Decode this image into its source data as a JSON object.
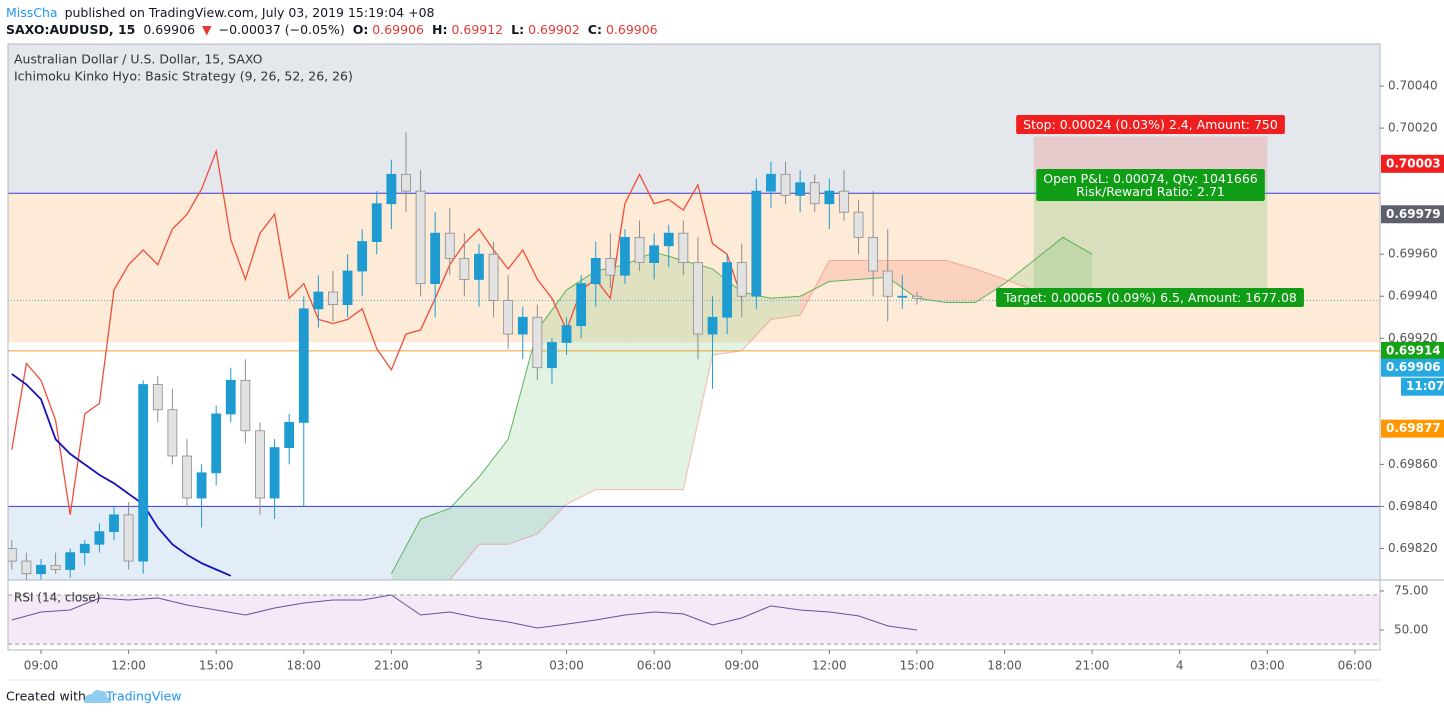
{
  "header": {
    "author": "MissCha",
    "published": "published on TradingView.com, July 03, 2019 15:19:04 +08",
    "symbol": "SAXO:AUDUSD, 15",
    "last": 0.69906,
    "arrow": "▼",
    "change": "−0.00037 (−0.05%)",
    "o_label": "O:",
    "open": 0.69906,
    "h_label": "H:",
    "high": 0.69912,
    "l_label": "L:",
    "low": 0.69902,
    "c_label": "C:",
    "close": 0.69906
  },
  "footer": {
    "created": "Created with",
    "brand": "TradingView"
  },
  "chart_data": {
    "type": "candlestick",
    "title": "Australian Dollar / U.S. Dollar, 15, SAXO",
    "subtitle": "Ichimoku Kinko Hyo: Basic Strategy (9, 26, 52, 26, 26)",
    "xlim": [
      7.87,
      54.86
    ],
    "xticks": [
      {
        "value": 9,
        "label": "09:00"
      },
      {
        "value": 12,
        "label": "12:00"
      },
      {
        "value": 15,
        "label": "15:00"
      },
      {
        "value": 18,
        "label": "18:00"
      },
      {
        "value": 21,
        "label": "21:00"
      },
      {
        "value": 24,
        "label": "3"
      },
      {
        "value": 27,
        "label": "03:00"
      },
      {
        "value": 30,
        "label": "06:00"
      },
      {
        "value": 33,
        "label": "09:00"
      },
      {
        "value": 36,
        "label": "12:00"
      },
      {
        "value": 39,
        "label": "15:00"
      },
      {
        "value": 42,
        "label": "18:00"
      },
      {
        "value": 45,
        "label": "21:00"
      },
      {
        "value": 48,
        "label": "4"
      },
      {
        "value": 51,
        "label": "03:00"
      },
      {
        "value": 54,
        "label": "06:00"
      }
    ],
    "ylim": [
      0.69805,
      0.7006
    ],
    "yticks": [
      {
        "value": 0.7004,
        "label": "0.70040"
      },
      {
        "value": 0.7002,
        "label": "0.70020"
      },
      {
        "value": 0.6996,
        "label": "0.69960"
      },
      {
        "value": 0.6994,
        "label": "0.69940"
      },
      {
        "value": 0.6992,
        "label": "0.69920"
      },
      {
        "value": 0.6986,
        "label": "0.69860"
      },
      {
        "value": 0.6984,
        "label": "0.69840"
      },
      {
        "value": 0.6982,
        "label": "0.69820"
      }
    ],
    "up_color": "#1e9bd0",
    "down_color": "#e2e2e2",
    "candles": {
      "x": [
        8,
        8.5,
        9,
        9.5,
        10,
        10.5,
        11,
        11.5,
        12,
        12.5,
        13,
        13.5,
        14,
        14.5,
        15,
        15.5,
        16,
        16.5,
        17,
        17.5,
        18,
        18.5,
        19,
        19.5,
        20,
        20.5,
        21,
        21.5,
        22,
        22.5,
        23,
        23.5,
        24,
        24.5,
        25,
        25.5,
        26,
        26.5,
        27,
        27.5,
        28,
        28.5,
        29,
        29.5,
        30,
        30.5,
        31,
        31.5,
        32,
        32.5,
        33,
        33.5,
        34,
        34.5,
        35,
        35.5,
        36,
        36.5,
        37,
        37.5,
        38,
        38.5,
        39
      ],
      "open": [
        0.6982,
        0.69814,
        0.69808,
        0.69812,
        0.6981,
        0.69818,
        0.69822,
        0.69828,
        0.69836,
        0.69814,
        0.69898,
        0.69886,
        0.69864,
        0.69844,
        0.69856,
        0.69884,
        0.699,
        0.69876,
        0.69844,
        0.69868,
        0.6988,
        0.69934,
        0.69942,
        0.69936,
        0.69952,
        0.69966,
        0.69984,
        0.69998,
        0.6999,
        0.69946,
        0.6997,
        0.69958,
        0.69948,
        0.6996,
        0.69938,
        0.69922,
        0.6993,
        0.69906,
        0.69918,
        0.69926,
        0.69946,
        0.69958,
        0.6995,
        0.69968,
        0.69956,
        0.69964,
        0.6997,
        0.69956,
        0.69922,
        0.6993,
        0.69956,
        0.6994,
        0.6999,
        0.69998,
        0.69988,
        0.69994,
        0.69984,
        0.6999,
        0.6998,
        0.69968,
        0.69952,
        0.6994,
        0.6994
      ],
      "high": [
        0.69824,
        0.69818,
        0.69815,
        0.69818,
        0.6982,
        0.69824,
        0.69832,
        0.6984,
        0.69842,
        0.699,
        0.69902,
        0.69896,
        0.69872,
        0.6986,
        0.69888,
        0.69906,
        0.6991,
        0.6988,
        0.69872,
        0.69884,
        0.6994,
        0.6995,
        0.69952,
        0.6996,
        0.69972,
        0.6999,
        0.70005,
        0.70018,
        0.7,
        0.6998,
        0.69982,
        0.6997,
        0.69965,
        0.69966,
        0.6995,
        0.69935,
        0.69936,
        0.6992,
        0.6993,
        0.6995,
        0.69966,
        0.6997,
        0.69972,
        0.69976,
        0.6997,
        0.69974,
        0.69976,
        0.69968,
        0.6994,
        0.6996,
        0.69965,
        0.69996,
        0.70004,
        0.70004,
        0.7,
        0.69998,
        0.69996,
        0.7,
        0.69986,
        0.6999,
        0.69972,
        0.6995,
        0.69942
      ],
      "low": [
        0.6981,
        0.69805,
        0.69805,
        0.69808,
        0.69806,
        0.69812,
        0.69818,
        0.69824,
        0.6981,
        0.69808,
        0.6988,
        0.6986,
        0.6984,
        0.6983,
        0.6985,
        0.6988,
        0.6987,
        0.69836,
        0.69834,
        0.6986,
        0.6984,
        0.69925,
        0.69928,
        0.6993,
        0.6994,
        0.6996,
        0.69972,
        0.6998,
        0.6994,
        0.6993,
        0.6995,
        0.6994,
        0.69935,
        0.6993,
        0.69915,
        0.6991,
        0.699,
        0.69898,
        0.69912,
        0.6992,
        0.69935,
        0.69944,
        0.69946,
        0.69952,
        0.69948,
        0.69954,
        0.6995,
        0.6991,
        0.69896,
        0.69922,
        0.6993,
        0.69934,
        0.69982,
        0.69984,
        0.6998,
        0.6998,
        0.69972,
        0.69976,
        0.6996,
        0.6994,
        0.69928,
        0.69934,
        0.69936
      ],
      "close": [
        0.69814,
        0.69808,
        0.69812,
        0.6981,
        0.69818,
        0.69822,
        0.69828,
        0.69836,
        0.69814,
        0.69898,
        0.69886,
        0.69864,
        0.69844,
        0.69856,
        0.69884,
        0.699,
        0.69876,
        0.69844,
        0.69868,
        0.6988,
        0.69934,
        0.69942,
        0.69936,
        0.69952,
        0.69966,
        0.69984,
        0.69998,
        0.6999,
        0.69946,
        0.6997,
        0.69958,
        0.69948,
        0.6996,
        0.69938,
        0.69922,
        0.6993,
        0.69906,
        0.69918,
        0.69926,
        0.69946,
        0.69958,
        0.6995,
        0.69968,
        0.69956,
        0.69964,
        0.6997,
        0.69956,
        0.69922,
        0.6993,
        0.69956,
        0.6994,
        0.6999,
        0.69998,
        0.69988,
        0.69994,
        0.69984,
        0.6999,
        0.6998,
        0.69968,
        0.69952,
        0.6994,
        0.6994,
        0.69939
      ]
    },
    "zones": [
      {
        "low": 0.69989,
        "high": 0.7006,
        "color": "#e4e8ed"
      },
      {
        "low": 0.69918,
        "high": 0.69989,
        "color": "#fdebd7"
      },
      {
        "low": 0.69805,
        "high": 0.6984,
        "color": "#e3edf8"
      }
    ],
    "hlines": [
      {
        "value": 0.69989,
        "color": "#3b3bd6"
      },
      {
        "value": 0.6984,
        "color": "#3b3bd6"
      },
      {
        "value": 0.69914,
        "color": "#f0a030"
      }
    ],
    "price_line": 0.69938,
    "cloud": {
      "x": [
        21,
        22,
        23,
        24,
        25,
        26,
        27,
        28,
        29,
        30,
        31,
        32,
        33,
        34,
        35,
        36,
        37,
        38,
        39,
        40,
        41,
        42,
        43,
        44,
        45
      ],
      "span_a": [
        0.69808,
        0.69834,
        0.69839,
        0.69854,
        0.69872,
        0.69924,
        0.69943,
        0.69952,
        0.69955,
        0.69961,
        0.69957,
        0.69953,
        0.69942,
        0.69939,
        0.6994,
        0.69947,
        0.69948,
        0.69949,
        0.69939,
        0.69937,
        0.69937,
        0.69946,
        0.69957,
        0.69968,
        0.6996
      ],
      "span_b": [
        0.69805,
        0.69805,
        0.69805,
        0.69822,
        0.69822,
        0.69827,
        0.69841,
        0.69848,
        0.69848,
        0.69848,
        0.69848,
        0.69912,
        0.69914,
        0.69929,
        0.69931,
        0.69957,
        0.69957,
        0.69957,
        0.69957,
        0.69957,
        0.69953,
        0.69948,
        0.69943,
        0.69941,
        0.69939
      ],
      "up_color": "#4caf50",
      "down_color": "#f44336"
    },
    "lagging_span": {
      "color": "#f04e3a",
      "x": [
        8,
        8.5,
        9,
        9.5,
        10,
        10.5,
        11,
        11.5,
        12,
        12.5,
        13,
        13.5,
        14,
        14.5,
        15,
        15.5,
        16,
        16.5,
        17,
        17.5,
        18,
        18.5,
        19,
        19.5,
        20,
        20.5,
        21,
        21.5,
        22,
        22.5,
        23,
        23.5,
        24,
        24.5,
        25,
        25.5,
        26,
        26.5,
        27,
        27.5,
        28,
        28.5,
        29,
        29.5,
        30,
        30.5,
        31,
        31.5,
        32,
        32.5,
        33
      ],
      "values": [
        0.69867,
        0.69908,
        0.699,
        0.69881,
        0.69836,
        0.69884,
        0.69889,
        0.69943,
        0.69955,
        0.69962,
        0.69955,
        0.69972,
        0.69979,
        0.69991,
        0.70009,
        0.69967,
        0.69948,
        0.6997,
        0.69979,
        0.69939,
        0.69946,
        0.69929,
        0.69927,
        0.69929,
        0.69934,
        0.69915,
        0.69905,
        0.69922,
        0.69924,
        0.69939,
        0.69955,
        0.69965,
        0.69972,
        0.69962,
        0.69953,
        0.69962,
        0.69948,
        0.69939,
        0.69924,
        0.69943,
        0.69948,
        0.69939,
        0.69984,
        0.69998,
        0.69984,
        0.69986,
        0.69981,
        0.69993,
        0.69965,
        0.6996,
        0.69939
      ]
    },
    "moving_line": {
      "color": "#1414b8",
      "x": [
        8,
        8.5,
        9,
        9.5,
        10,
        10.5,
        11,
        11.5,
        12,
        12.5,
        13,
        13.5,
        14,
        14.5,
        15,
        15.5
      ],
      "values": [
        0.69903,
        0.69898,
        0.69891,
        0.69872,
        0.69865,
        0.6986,
        0.69855,
        0.69851,
        0.69846,
        0.69841,
        0.6983,
        0.69822,
        0.69817,
        0.69813,
        0.6981,
        0.69807
      ]
    },
    "position": {
      "start": 43,
      "end": 51,
      "entry": 0.69996,
      "stop": 0.70016,
      "target": 0.69938,
      "stop_label": "Stop: 0.00024 (0.03%) 2.4, Amount: 750",
      "pnl_label": "Open P&L: 0.00074, Qty: 1041666",
      "ratio_label": "Risk/Reward Ratio: 2.71",
      "target_label": "Target: 0.00065 (0.09%) 6.5, Amount: 1677.08"
    },
    "price_tags": [
      {
        "value": 0.70003,
        "color": "#f01e1e"
      },
      {
        "value": 0.69979,
        "color": "#5d606b"
      },
      {
        "value": 0.69914,
        "color": "#17a117"
      },
      {
        "value": 0.69906,
        "color": "#26a9e0",
        "sublabel": "11:07"
      },
      {
        "value": 0.69877,
        "color": "#ff9800"
      }
    ],
    "rsi": {
      "label": "RSI (14, close)",
      "color": "#6a4fa0",
      "ylim": [
        37.2,
        82
      ],
      "yticks": [
        {
          "value": 75,
          "label": "75.00"
        },
        {
          "value": 50,
          "label": "50.00"
        }
      ],
      "bands": [
        41,
        72.4
      ],
      "x": [
        8,
        9,
        10,
        11,
        12,
        13,
        14,
        15,
        16,
        17,
        18,
        19,
        20,
        21,
        22,
        23,
        24,
        25,
        26,
        27,
        28,
        29,
        30,
        31,
        32,
        33,
        34,
        35,
        36,
        37,
        38,
        39
      ],
      "values": [
        56.4,
        61.5,
        62.8,
        70.5,
        69.2,
        70.5,
        66,
        62.8,
        59.6,
        64.1,
        67.3,
        69.2,
        69.2,
        72.4,
        59.6,
        61.5,
        57.7,
        55.1,
        51.3,
        53.8,
        56.4,
        59.6,
        61.5,
        60.3,
        53.2,
        57.7,
        65.4,
        62.8,
        61.5,
        59,
        52.6,
        50
      ]
    }
  }
}
